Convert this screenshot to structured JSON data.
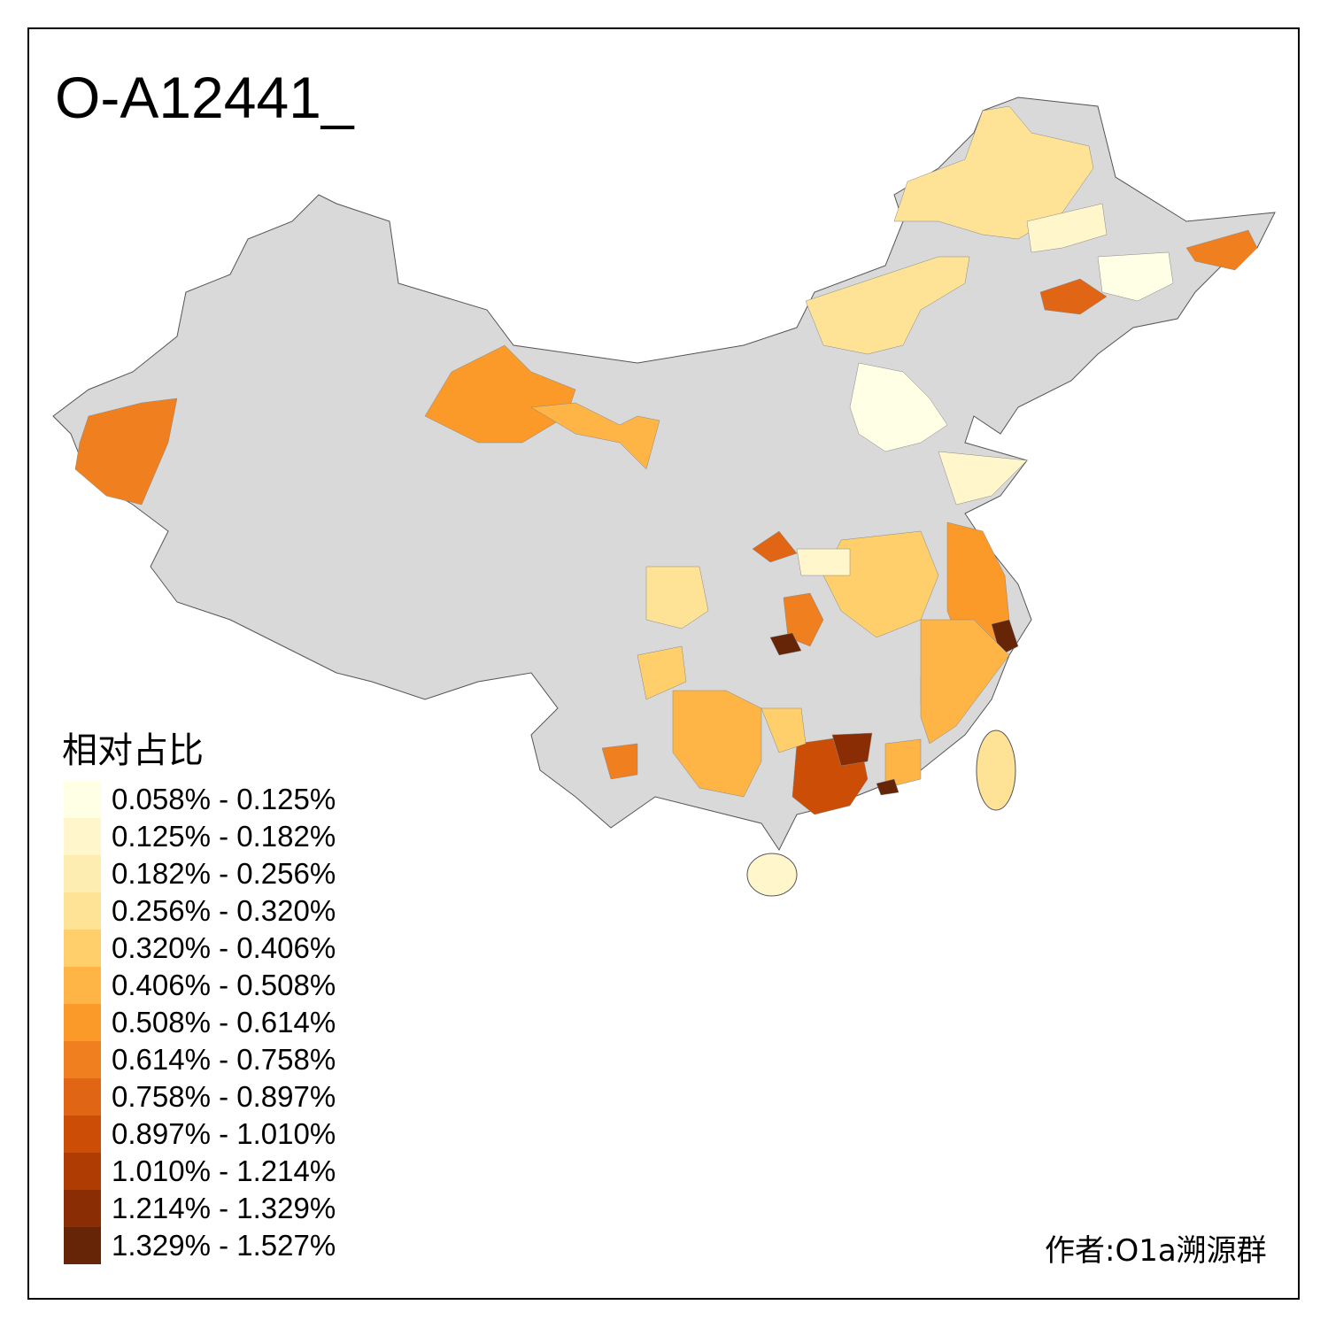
{
  "title": "O-A12441_",
  "legend": {
    "title": "相对占比",
    "classes": [
      {
        "label": "0.058% - 0.125%",
        "color": "#FFFFE5"
      },
      {
        "label": "0.125% - 0.182%",
        "color": "#FFF7CB"
      },
      {
        "label": "0.182% - 0.256%",
        "color": "#FEEDB0"
      },
      {
        "label": "0.256% - 0.320%",
        "color": "#FEE396"
      },
      {
        "label": "0.320% - 0.406%",
        "color": "#FECF6A"
      },
      {
        "label": "0.406% - 0.508%",
        "color": "#FEB545"
      },
      {
        "label": "0.508% - 0.614%",
        "color": "#FB9A29"
      },
      {
        "label": "0.614% - 0.758%",
        "color": "#F0801F"
      },
      {
        "label": "0.758% - 0.897%",
        "color": "#E06514"
      },
      {
        "label": "0.897% - 1.010%",
        "color": "#CB4D06"
      },
      {
        "label": "1.010% - 1.214%",
        "color": "#AE3C03"
      },
      {
        "label": "1.214% - 1.329%",
        "color": "#8B2D04"
      },
      {
        "label": "1.329% - 1.527%",
        "color": "#662506"
      }
    ]
  },
  "no_data_color": "#D9D9D9",
  "author": "作者:O1a溯源群"
}
